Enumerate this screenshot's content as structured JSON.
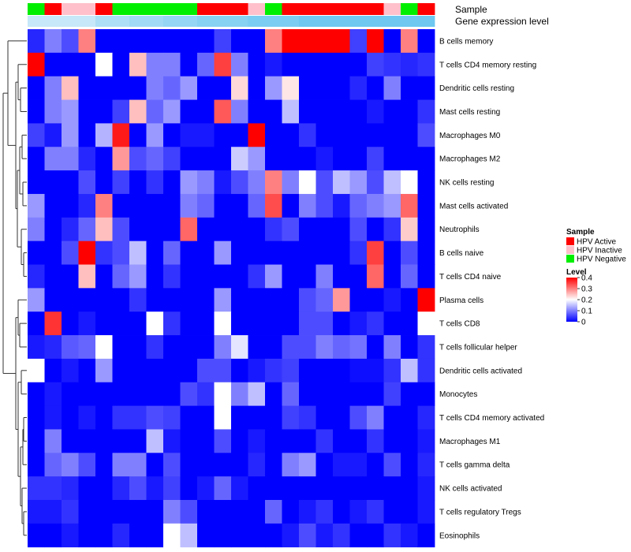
{
  "chart_data": {
    "type": "heatmap",
    "annotation_labels": {
      "sample": "Sample",
      "expression": "Gene expression level"
    },
    "rows": [
      "B cells memory",
      "T cells CD4 memory resting",
      "Dendritic cells resting",
      "Mast cells resting",
      "Macrophages M0",
      "Macrophages M2",
      "NK cells resting",
      "Mast cells activated",
      "Neutrophils",
      "B cells naive",
      "T cells CD4 naive",
      "Plasma cells",
      "T cells CD8",
      "T cells follicular helper",
      "Dendritic cells activated",
      "Monocytes",
      "T cells CD4 memory activated",
      "Macrophages M1",
      "T cells gamma delta",
      "NK cells activated",
      "T cells regulatory  Tregs",
      "Eosinophils"
    ],
    "sample_groups": [
      "HPV Negative",
      "HPV Active",
      "HPV Inactive",
      "HPV Inactive",
      "HPV Active",
      "HPV Negative",
      "HPV Negative",
      "HPV Negative",
      "HPV Negative",
      "HPV Negative",
      "HPV Active",
      "HPV Active",
      "HPV Active",
      "HPV Inactive",
      "HPV Negative",
      "HPV Active",
      "HPV Active",
      "HPV Active",
      "HPV Active",
      "HPV Active",
      "HPV Active",
      "HPV Inactive",
      "HPV Negative",
      "HPV Active"
    ],
    "expression_level": [
      0.3,
      0.3,
      0.3,
      0.3,
      0.5,
      0.5,
      0.6,
      0.6,
      0.7,
      0.7,
      0.8,
      0.8,
      0.8,
      0.9,
      0.9,
      0.9,
      1,
      1,
      1,
      1,
      1,
      1,
      1,
      1
    ],
    "values": [
      [
        0.03,
        0.1,
        0.06,
        0.3,
        0,
        0,
        0,
        0,
        0,
        0,
        0,
        0.05,
        0,
        0,
        0.3,
        0.4,
        0.4,
        0.4,
        0.4,
        0.05,
        0.4,
        0,
        0.3,
        0
      ],
      [
        0.4,
        0,
        0,
        0,
        0.2,
        0,
        0.25,
        0.1,
        0.1,
        0,
        0.08,
        0.35,
        0.1,
        0,
        0.02,
        0,
        0,
        0,
        0,
        0,
        0.05,
        0.04,
        0.03,
        0.04
      ],
      [
        0,
        0.1,
        0.25,
        0,
        0,
        0,
        0,
        0.1,
        0.08,
        0.12,
        0,
        0,
        0.23,
        0,
        0.12,
        0.22,
        0,
        0,
        0,
        0.03,
        0,
        0.1,
        0,
        0
      ],
      [
        0,
        0.1,
        0.12,
        0,
        0,
        0.05,
        0.25,
        0.08,
        0.12,
        0,
        0,
        0.33,
        0.1,
        0,
        0,
        0.15,
        0,
        0,
        0,
        0,
        0.02,
        0,
        0,
        0.04
      ],
      [
        0.05,
        0.02,
        0.12,
        0,
        0.14,
        0.38,
        0,
        0.12,
        0,
        0.02,
        0.02,
        0,
        0,
        0.4,
        0,
        0,
        0.04,
        0,
        0,
        0,
        0,
        0,
        0,
        0.06
      ],
      [
        0,
        0.1,
        0.1,
        0.03,
        0,
        0.28,
        0.06,
        0.08,
        0.05,
        0,
        0,
        0,
        0.16,
        0.12,
        0,
        0,
        0,
        0.02,
        0,
        0,
        0.05,
        0,
        0,
        0
      ],
      [
        0,
        0,
        0,
        0.06,
        0,
        0.05,
        0,
        0.04,
        0,
        0.12,
        0.1,
        0.02,
        0.06,
        0.1,
        0.3,
        0.1,
        0.2,
        0.06,
        0.15,
        0.12,
        0.06,
        0.15,
        0.2,
        0
      ],
      [
        0.12,
        0,
        0,
        0.03,
        0.3,
        0,
        0,
        0,
        0,
        0.1,
        0.08,
        0,
        0,
        0.08,
        0.34,
        0,
        0.1,
        0.06,
        0.02,
        0.08,
        0.1,
        0.12,
        0.32,
        0
      ],
      [
        0.1,
        0,
        0.03,
        0.08,
        0.25,
        0.06,
        0,
        0,
        0,
        0.32,
        0,
        0,
        0,
        0,
        0.04,
        0.06,
        0,
        0,
        0,
        0.06,
        0,
        0.04,
        0.24,
        0
      ],
      [
        0,
        0,
        0.06,
        0.4,
        0.04,
        0.06,
        0.15,
        0,
        0.08,
        0,
        0,
        0.12,
        0,
        0,
        0,
        0,
        0,
        0,
        0,
        0.04,
        0.35,
        0,
        0.06,
        0
      ],
      [
        0.03,
        0,
        0,
        0.25,
        0,
        0.08,
        0.12,
        0,
        0.04,
        0,
        0,
        0,
        0,
        0.04,
        0.12,
        0,
        0,
        0.1,
        0,
        0,
        0.32,
        0,
        0.08,
        0
      ],
      [
        0.12,
        0,
        0,
        0,
        0,
        0,
        0.04,
        0,
        0,
        0,
        0,
        0.12,
        0,
        0,
        0,
        0,
        0.06,
        0.08,
        0.28,
        0,
        0,
        0.02,
        0,
        0.4
      ],
      [
        0,
        0.36,
        0,
        0.02,
        0,
        0,
        0,
        0.2,
        0.04,
        0,
        0,
        0.2,
        0,
        0,
        0,
        0,
        0.06,
        0.06,
        0,
        0.02,
        0.04,
        0,
        0,
        0.2
      ],
      [
        0.02,
        0.03,
        0.07,
        0.08,
        0.2,
        0,
        0,
        0.04,
        0,
        0,
        0,
        0.1,
        0.18,
        0,
        0,
        0.06,
        0.06,
        0.1,
        0.08,
        0.09,
        0,
        0.1,
        0,
        0.04
      ],
      [
        0.2,
        0,
        0.02,
        0,
        0.12,
        0,
        0,
        0,
        0,
        0,
        0.06,
        0.06,
        0,
        0.02,
        0.04,
        0.05,
        0,
        0,
        0,
        0.01,
        0.01,
        0.04,
        0.15,
        0.04
      ],
      [
        0,
        0.02,
        0,
        0,
        0,
        0,
        0,
        0,
        0,
        0.06,
        0.04,
        0.2,
        0.1,
        0.15,
        0,
        0.08,
        0,
        0,
        0,
        0,
        0,
        0.05,
        0,
        0
      ],
      [
        0,
        0.02,
        0,
        0.02,
        0,
        0.04,
        0.04,
        0.06,
        0.05,
        0,
        0,
        0.2,
        0,
        0,
        0,
        0.05,
        0.04,
        0,
        0,
        0.06,
        0.1,
        0,
        0,
        0.03
      ],
      [
        0,
        0.1,
        0,
        0,
        0,
        0,
        0,
        0.15,
        0.02,
        0,
        0,
        0.06,
        0,
        0.02,
        0,
        0,
        0,
        0.04,
        0,
        0,
        0.04,
        0,
        0,
        0.02
      ],
      [
        0,
        0.08,
        0.1,
        0.06,
        0,
        0.1,
        0.1,
        0,
        0.06,
        0,
        0,
        0,
        0,
        0.03,
        0,
        0.1,
        0.12,
        0,
        0.02,
        0.02,
        0,
        0.06,
        0,
        0.03
      ],
      [
        0.04,
        0.04,
        0.03,
        0,
        0,
        0.03,
        0.06,
        0.02,
        0.05,
        0,
        0.02,
        0.08,
        0.02,
        0,
        0,
        0,
        0,
        0,
        0,
        0,
        0,
        0,
        0,
        0.02
      ],
      [
        0.02,
        0.02,
        0.04,
        0,
        0,
        0,
        0,
        0,
        0.1,
        0.06,
        0,
        0,
        0,
        0,
        0.08,
        0,
        0.02,
        0.04,
        0,
        0.02,
        0.04,
        0,
        0,
        0.02
      ],
      [
        0,
        0,
        0.02,
        0,
        0,
        0.03,
        0,
        0,
        0.2,
        0.15,
        0,
        0,
        0,
        0,
        0,
        0.02,
        0.06,
        0.02,
        0.04,
        0,
        0,
        0.04,
        0.02,
        0
      ]
    ],
    "legend_sample": {
      "title": "Sample",
      "entries": [
        {
          "label": "HPV Active",
          "color": "#ff0000"
        },
        {
          "label": "HPV Inactive",
          "color": "#ffc0cb"
        },
        {
          "label": "HPV Negative",
          "color": "#00ee00"
        }
      ]
    },
    "legend_level": {
      "title": "Level",
      "ticks": [
        "0.4",
        "0.3",
        "0.2",
        "0.1",
        "0"
      ],
      "range": [
        0,
        0.4
      ],
      "colors": [
        "#0000ff",
        "#ffffff",
        "#ff0000"
      ]
    },
    "expression_color": "#87ceeb"
  }
}
